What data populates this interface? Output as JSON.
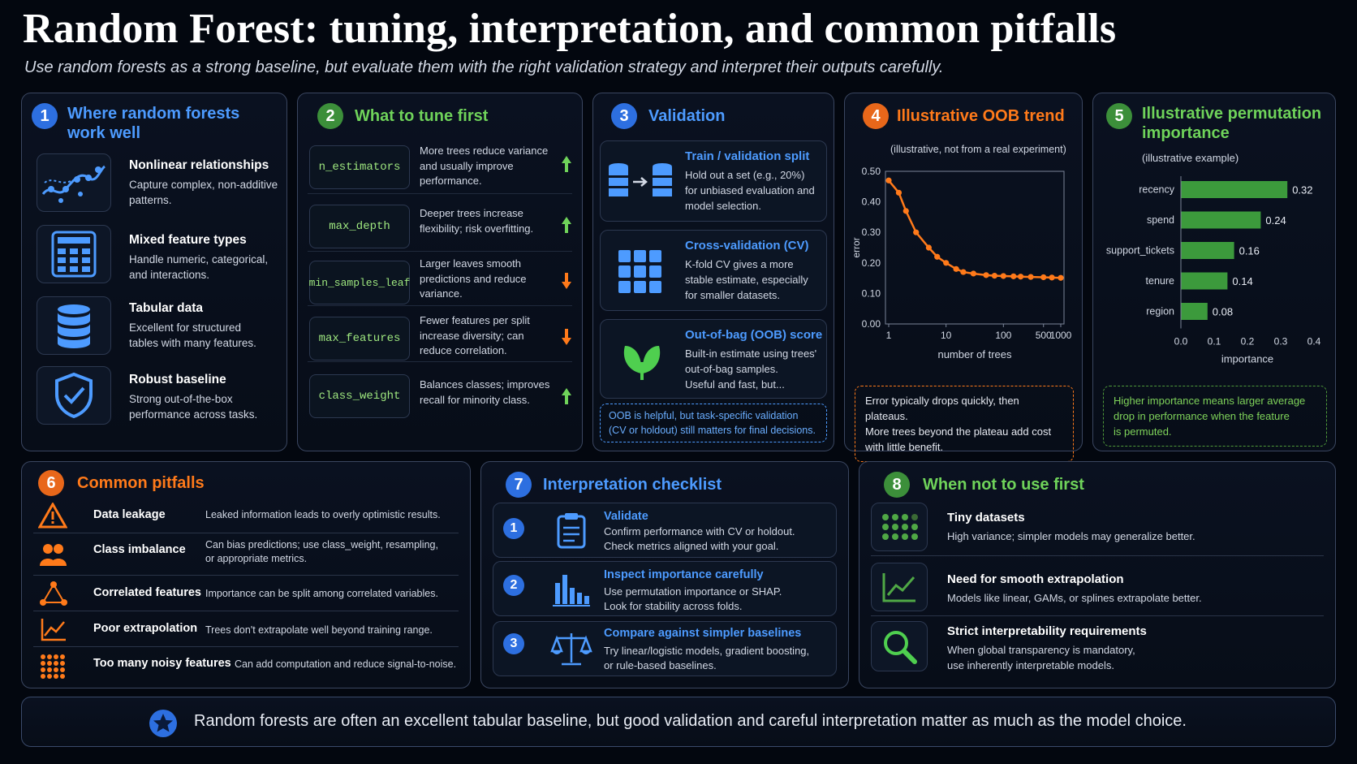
{
  "header": {
    "title": "Random Forest: tuning, interpretation, and common pitfalls",
    "subtitle": "Use random forests as a strong baseline, but evaluate them with the right validation strategy and interpret their outputs carefully."
  },
  "colors": {
    "blue": "#4d9bff",
    "green": "#6fd35a",
    "orange": "#ff7a1a",
    "background": "#03070f"
  },
  "p1": {
    "num": "1",
    "title_l1": "Where random forests",
    "title_l2": "work well",
    "items": [
      {
        "icon": "network-curve-icon",
        "title": "Nonlinear relationships",
        "l1": "Capture complex, non-additive",
        "l2": "patterns."
      },
      {
        "icon": "table-grid-icon",
        "title": "Mixed feature types",
        "l1": "Handle numeric, categorical,",
        "l2": "and interactions."
      },
      {
        "icon": "database-icon",
        "title": "Tabular data",
        "l1": "Excellent for structured",
        "l2": "tables with many features."
      },
      {
        "icon": "shield-check-icon",
        "title": "Robust baseline",
        "l1": "Strong out-of-the-box",
        "l2": "performance across tasks."
      }
    ]
  },
  "p2": {
    "num": "2",
    "title": "What to tune first",
    "params": [
      {
        "name": "n_estimators",
        "l1": "More trees reduce variance",
        "l2": "and usually improve",
        "l3": "performance.",
        "dir": "up"
      },
      {
        "name": "max_depth",
        "l1": "Deeper trees increase",
        "l2": "flexibility; risk overfitting.",
        "l3": "",
        "dir": "up"
      },
      {
        "name": "min_samples_leaf",
        "l1": "Larger leaves smooth",
        "l2": "predictions and reduce",
        "l3": "variance.",
        "dir": "down"
      },
      {
        "name": "max_features",
        "l1": "Fewer features per split",
        "l2": "increase diversity; can",
        "l3": "reduce correlation.",
        "dir": "down"
      },
      {
        "name": "class_weight",
        "l1": "Balances classes; improves",
        "l2": "recall for minority class.",
        "l3": "",
        "dir": "up"
      }
    ]
  },
  "p3": {
    "num": "3",
    "title": "Validation",
    "cards": [
      {
        "icon": "database-transfer-icon",
        "title": "Train / validation split",
        "l1": "Hold out a set (e.g., 20%)",
        "l2": "for unbiased evaluation and",
        "l3": "model selection."
      },
      {
        "icon": "grid-blocks-icon",
        "title": "Cross-validation (CV)",
        "l1": "K-fold CV gives a more",
        "l2": "stable estimate, especially",
        "l3": "for smaller datasets."
      },
      {
        "icon": "leaf-icon",
        "title": "Out-of-bag (OOB) score",
        "l1": "Built-in estimate using trees'",
        "l2": "out-of-bag samples.",
        "l3": "Useful and fast, but..."
      }
    ],
    "note_l1": "OOB is helpful, but task-specific validation",
    "note_l2": "(CV or holdout) still matters for final decisions."
  },
  "p4": {
    "num": "4",
    "title": "Illustrative OOB trend",
    "caption": "(illustrative, not from a real experiment)",
    "note_l1": "Error typically drops quickly, then plateaus.",
    "note_l2": "More trees beyond the plateau add cost",
    "note_l3": "with little benefit."
  },
  "p5": {
    "num": "5",
    "title_l1": "Illustrative permutation",
    "title_l2": "importance",
    "caption": "(illustrative example)",
    "note_l1": "Higher importance means larger average",
    "note_l2": "drop in performance when the feature",
    "note_l3": "is permuted."
  },
  "chart_data": [
    {
      "type": "line",
      "title": "",
      "xlabel": "number of trees",
      "ylabel": "error",
      "x_scale": "log",
      "x_ticks": [
        "1",
        "10",
        "100",
        "500",
        "1000"
      ],
      "y_ticks": [
        "0.00",
        "0.10",
        "0.20",
        "0.30",
        "0.40",
        "0.50"
      ],
      "ylim": [
        0,
        0.5
      ],
      "xlim": [
        1,
        1000
      ],
      "x": [
        1,
        1.5,
        2,
        3,
        5,
        7,
        10,
        15,
        20,
        30,
        50,
        70,
        100,
        150,
        200,
        300,
        500,
        700,
        1000
      ],
      "y": [
        0.47,
        0.43,
        0.37,
        0.3,
        0.25,
        0.22,
        0.2,
        0.18,
        0.17,
        0.165,
        0.16,
        0.158,
        0.157,
        0.156,
        0.155,
        0.154,
        0.153,
        0.152,
        0.151
      ],
      "color": "#ff7a1a"
    },
    {
      "type": "bar",
      "orientation": "horizontal",
      "xlabel": "importance",
      "categories": [
        "recency",
        "spend",
        "support_tickets",
        "tenure",
        "region"
      ],
      "values": [
        0.32,
        0.24,
        0.16,
        0.14,
        0.08
      ],
      "value_labels": [
        "0.32",
        "0.24",
        "0.16",
        "0.14",
        "0.08"
      ],
      "x_ticks": [
        "0.0",
        "0.1",
        "0.2",
        "0.3",
        "0.4"
      ],
      "xlim": [
        0,
        0.4
      ],
      "color": "#3c9a3c"
    }
  ],
  "p6": {
    "num": "6",
    "title": "Common pitfalls",
    "items": [
      {
        "icon": "warning-icon",
        "title": "Data leakage",
        "text": "Leaked information leads to overly optimistic results.",
        "text2": ""
      },
      {
        "icon": "users-icon",
        "title": "Class imbalance",
        "text": "Can bias predictions; use class_weight, resampling,",
        "text2": "or appropriate metrics."
      },
      {
        "icon": "nodes-triangle-icon",
        "title": "Correlated features",
        "text": "Importance can be split among correlated variables.",
        "text2": ""
      },
      {
        "icon": "trend-line-icon",
        "title": "Poor extrapolation",
        "text": "Trees don't extrapolate well beyond training range.",
        "text2": ""
      },
      {
        "icon": "dots-grid-icon",
        "title": "Too many noisy features",
        "text": "Can add computation and reduce signal-to-noise.",
        "text2": ""
      }
    ]
  },
  "p7": {
    "num": "7",
    "title": "Interpretation checklist",
    "items": [
      {
        "num": "1",
        "icon": "clipboard-icon",
        "title": "Validate",
        "l1": "Confirm performance with CV or holdout.",
        "l2": "Check metrics aligned with your goal."
      },
      {
        "num": "2",
        "icon": "bar-chart-icon",
        "title": "Inspect importance carefully",
        "l1": "Use permutation importance or SHAP.",
        "l2": "Look for stability across folds."
      },
      {
        "num": "3",
        "icon": "scales-icon",
        "title": "Compare against simpler baselines",
        "l1": "Try linear/logistic models, gradient boosting,",
        "l2": "or rule-based baselines."
      }
    ]
  },
  "p8": {
    "num": "8",
    "title": "When not to use first",
    "items": [
      {
        "icon": "dots-grid-icon",
        "title": "Tiny datasets",
        "l1": "High variance; simpler models may generalize better.",
        "l2": ""
      },
      {
        "icon": "trend-line-icon",
        "title": "Need for smooth extrapolation",
        "l1": "Models like linear, GAMs, or splines extrapolate better.",
        "l2": ""
      },
      {
        "icon": "magnifier-icon",
        "title": "Strict interpretability requirements",
        "l1": "When global transparency is mandatory,",
        "l2": "use inherently interpretable models."
      }
    ]
  },
  "footer": {
    "icon": "star-icon",
    "text": "Random forests are often an excellent tabular baseline, but good validation and careful interpretation matter as much as the model choice."
  }
}
